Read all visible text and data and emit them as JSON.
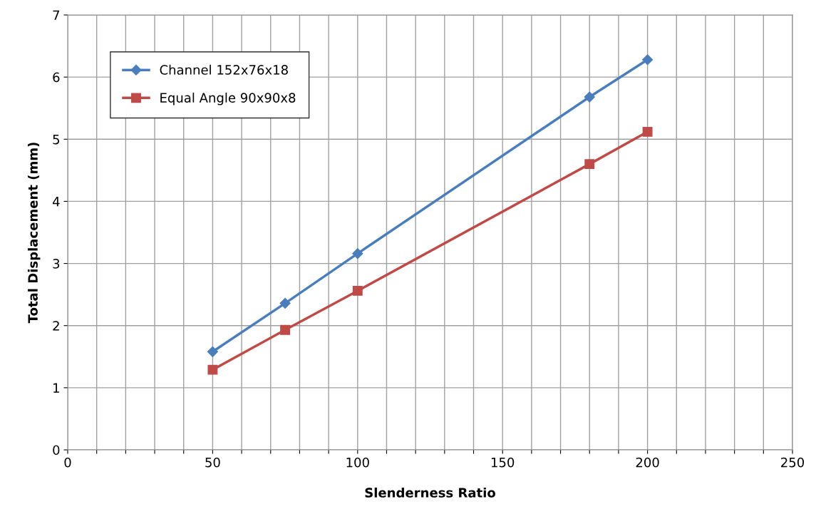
{
  "chart_data": {
    "type": "line",
    "xlabel": "Slenderness Ratio",
    "ylabel": "Total Displacement (mm)",
    "x": [
      50,
      75,
      100,
      180,
      200
    ],
    "series": [
      {
        "name": "Channel 152x76x18",
        "color": "#4a7ebb",
        "marker": "diamond",
        "values": [
          1.58,
          2.36,
          3.16,
          5.68,
          6.28
        ]
      },
      {
        "name": "Equal Angle 90x90x8",
        "color": "#be4b48",
        "marker": "square",
        "values": [
          1.29,
          1.93,
          2.56,
          4.6,
          5.12
        ]
      }
    ],
    "xlim": [
      0,
      250
    ],
    "ylim": [
      0,
      7
    ],
    "xticks": [
      0,
      {
        "value": 10,
        "label": null
      },
      {
        "value": 20,
        "label": null
      },
      {
        "value": 30,
        "label": null
      },
      {
        "value": 40,
        "label": null
      },
      50,
      {
        "value": 60,
        "label": null
      },
      {
        "value": 70,
        "label": null
      },
      {
        "value": 80,
        "label": null
      },
      {
        "value": 90,
        "label": null
      },
      100,
      {
        "value": 110,
        "label": null
      },
      {
        "value": 120,
        "label": null
      },
      {
        "value": 130,
        "label": null
      },
      {
        "value": 140,
        "label": null
      },
      150,
      {
        "value": 160,
        "label": null
      },
      {
        "value": 170,
        "label": null
      },
      {
        "value": 180,
        "label": null
      },
      {
        "value": 190,
        "label": null
      },
      200,
      {
        "value": 210,
        "label": null
      },
      {
        "value": 220,
        "label": null
      },
      {
        "value": 230,
        "label": null
      },
      {
        "value": 240,
        "label": null
      },
      250
    ],
    "yticks": [
      0,
      1,
      2,
      3,
      4,
      5,
      6,
      7
    ],
    "grid": true,
    "legend": "top left",
    "line_style": "solid"
  }
}
